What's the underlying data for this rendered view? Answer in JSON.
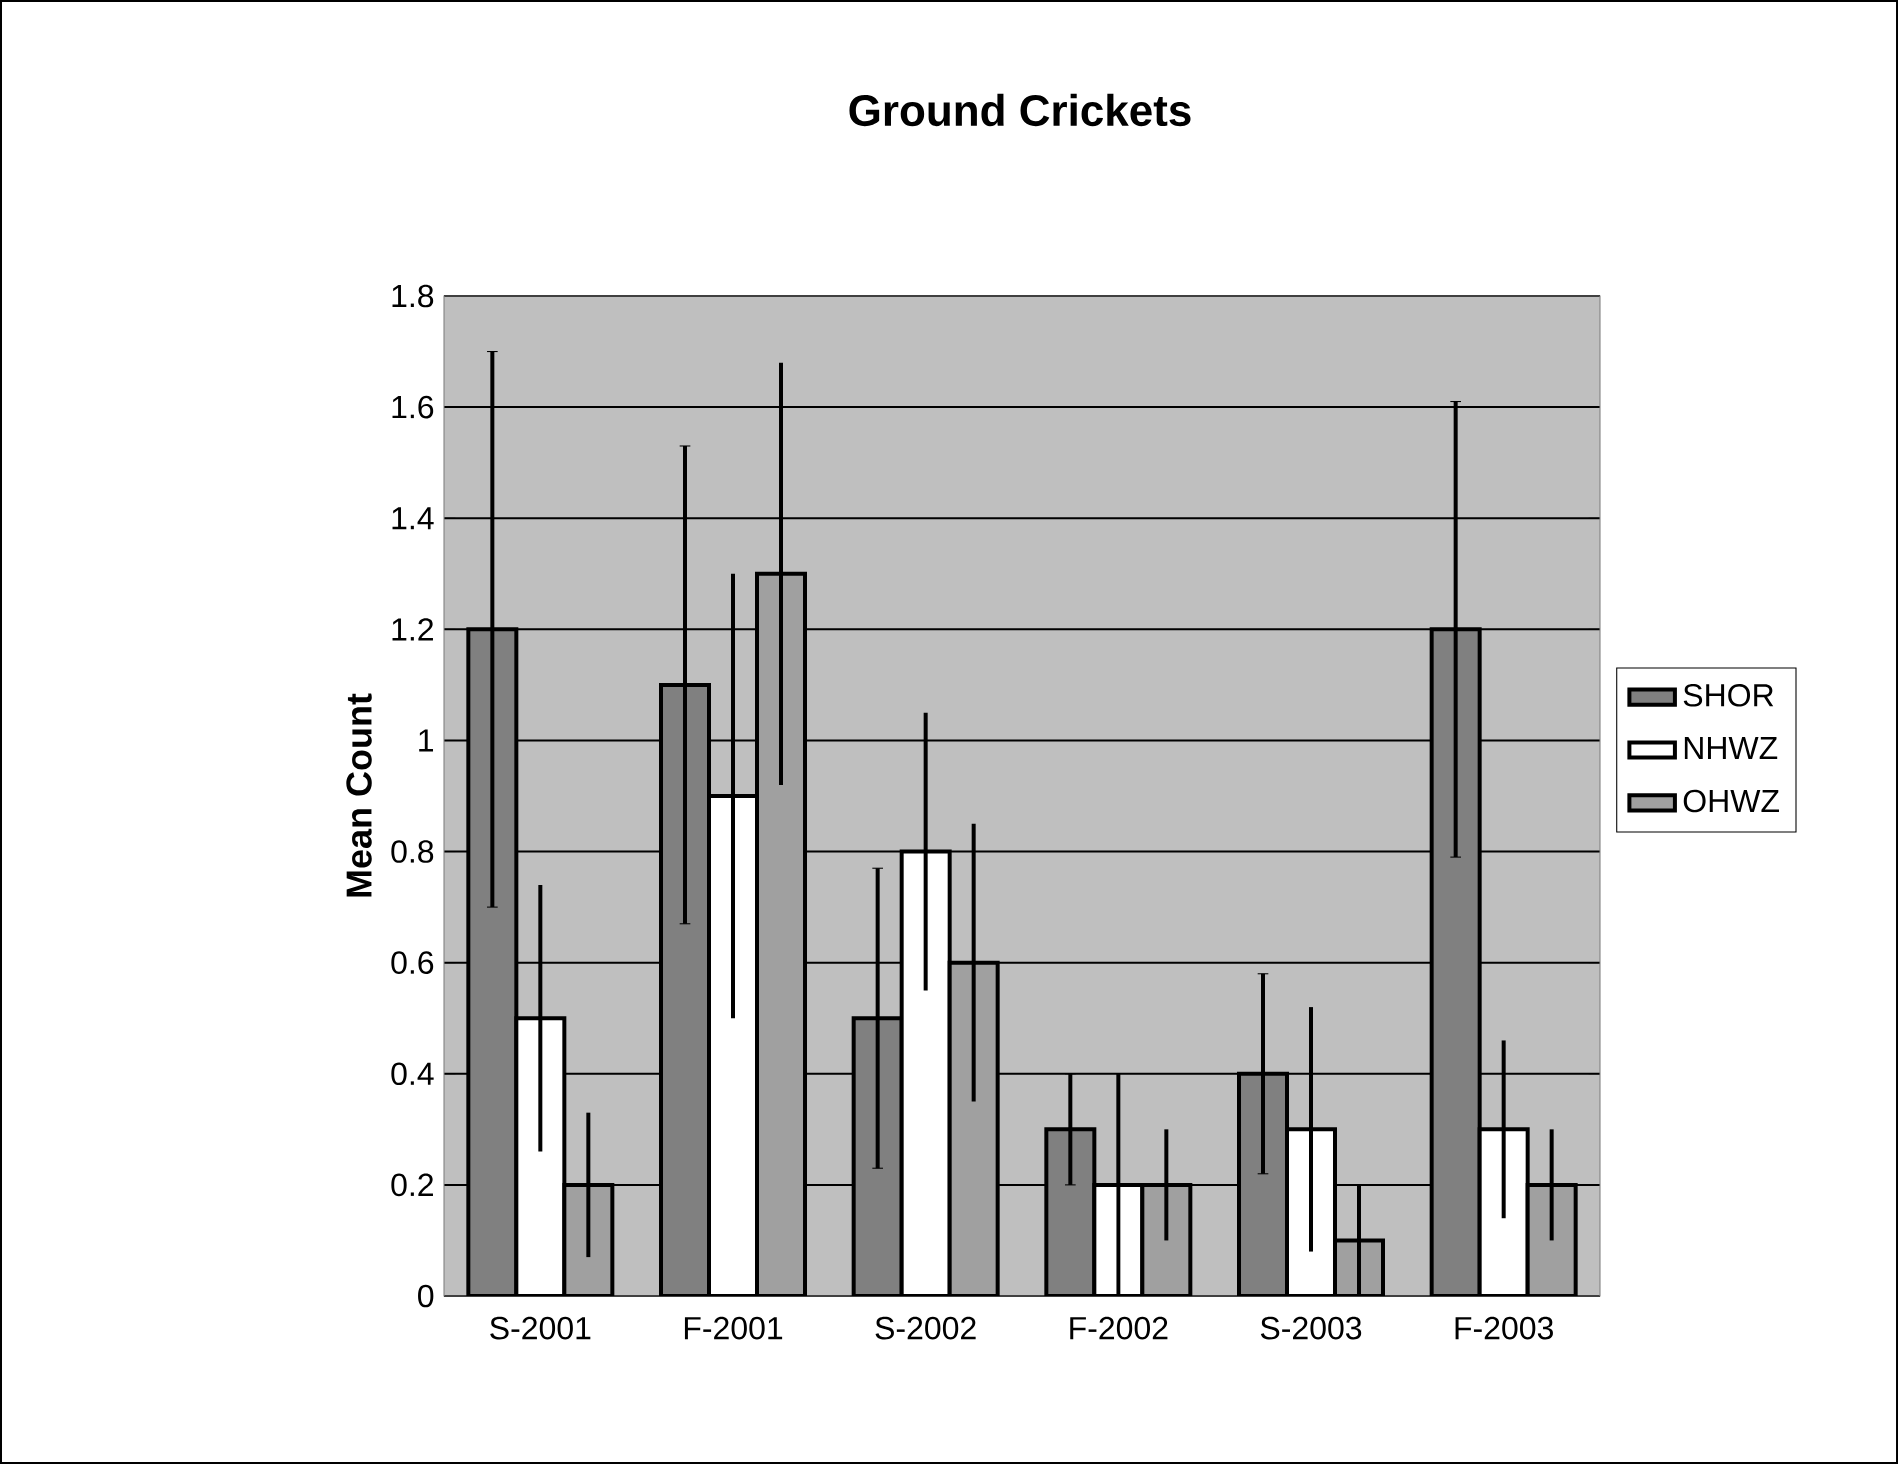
{
  "chart_data": {
    "type": "bar",
    "title": "Ground Crickets",
    "ylabel": "Mean Count",
    "categories": [
      "S-2001",
      "F-2001",
      "S-2002",
      "F-2002",
      "S-2003",
      "F-2003"
    ],
    "series": [
      {
        "name": "SHOR",
        "color": "#808080",
        "values": [
          1.2,
          1.1,
          0.5,
          0.3,
          0.4,
          1.2
        ],
        "errors": [
          0.5,
          0.43,
          0.27,
          0.1,
          0.18,
          0.41
        ]
      },
      {
        "name": "NHWZ",
        "color": "#ffffff",
        "values": [
          0.5,
          0.9,
          0.8,
          0.2,
          0.3,
          0.3
        ],
        "errors": [
          0.24,
          0.4,
          0.25,
          0.2,
          0.22,
          0.16
        ]
      },
      {
        "name": "OHWZ",
        "color": "#a0a0a0",
        "values": [
          0.2,
          1.3,
          0.6,
          0.2,
          0.1,
          0.2
        ],
        "errors": [
          0.13,
          0.38,
          0.25,
          0.1,
          0.1,
          0.1
        ]
      }
    ],
    "ylim": [
      0,
      1.8
    ],
    "yticks": [
      0,
      0.2,
      0.4,
      0.6,
      0.8,
      1,
      1.2,
      1.4,
      1.6,
      1.8
    ],
    "grid": "y",
    "legend": "right"
  }
}
